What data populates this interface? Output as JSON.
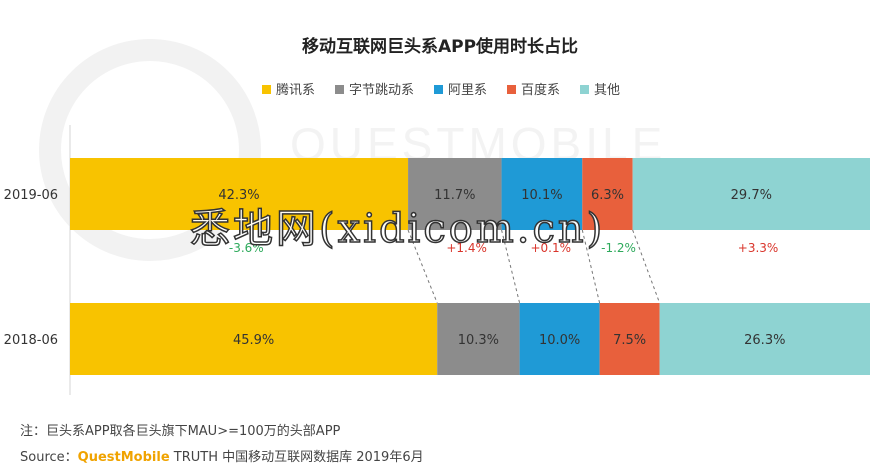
{
  "chart_data": {
    "type": "bar",
    "stacked": true,
    "orientation": "horizontal",
    "normalized_percent": true,
    "title": "移动互联网巨头系APP使用时长占比",
    "categories": [
      "2019-06",
      "2018-06"
    ],
    "legend_position": "top",
    "series": [
      {
        "name": "腾讯系",
        "color": "#f8c300",
        "values": [
          42.3,
          45.9
        ],
        "labels": [
          "42.3%",
          "45.9%"
        ],
        "change_label": "-3.6%",
        "change_color": "#2eaa5c"
      },
      {
        "name": "字节跳动系",
        "color": "#8c8c8c",
        "values": [
          11.7,
          10.3
        ],
        "labels": [
          "11.7%",
          "10.3%"
        ],
        "change_label": "+1.4%",
        "change_color": "#d9352b"
      },
      {
        "name": "阿里系",
        "color": "#1f9ad6",
        "values": [
          10.1,
          10.0
        ],
        "labels": [
          "10.1%",
          "10.0%"
        ],
        "change_label": "+0.1%",
        "change_color": "#d9352b"
      },
      {
        "name": "百度系",
        "color": "#e8603c",
        "values": [
          6.3,
          7.5
        ],
        "labels": [
          "6.3%",
          "7.5%"
        ],
        "change_label": "-1.2%",
        "change_color": "#2eaa5c"
      },
      {
        "name": "其他",
        "color": "#8ed3d2",
        "values": [
          29.7,
          26.3
        ],
        "labels": [
          "29.7%",
          "26.3%"
        ],
        "change_label": "+3.3%",
        "change_color": "#d9352b"
      }
    ]
  },
  "notes": {
    "note_line": "注：巨头系APP取各巨头旗下MAU>=100万的头部APP",
    "source_prefix": "Source：",
    "source_brand": "QuestMobile",
    "source_rest": " TRUTH 中国移动互联网数据库 2019年6月"
  },
  "watermark": {
    "text": "悉地网(xidicom.cn)",
    "background_logo": "QUESTMOBILE"
  }
}
